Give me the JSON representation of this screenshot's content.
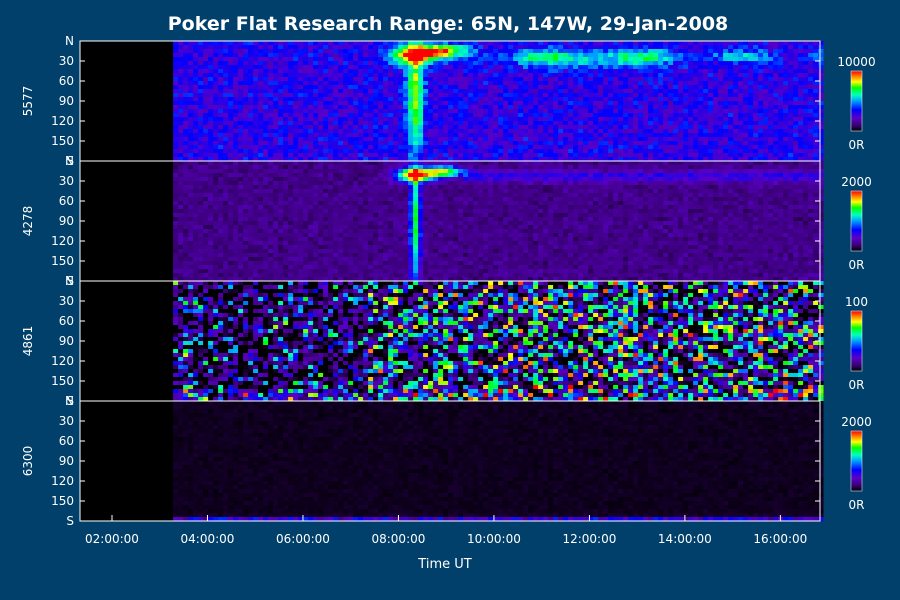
{
  "chart_data": {
    "type": "heatmap",
    "title": "Poker Flat Research Range: 65N, 147W, 29-Jan-2008",
    "xlabel": "Time UT",
    "x_ticks": [
      "02:00:00",
      "04:00:00",
      "06:00:00",
      "08:00:00",
      "10:00:00",
      "12:00:00",
      "14:00:00",
      "16:00:00"
    ],
    "x_tick_hours": [
      2,
      4,
      6,
      8,
      10,
      12,
      14,
      16
    ],
    "x_range_hours": [
      1.33,
      16.83
    ],
    "data_start_hour": 3.28,
    "y_ticks": [
      "N",
      "30",
      "60",
      "90",
      "120",
      "150",
      "S"
    ],
    "y_tick_values": [
      0,
      30,
      60,
      90,
      120,
      150,
      180
    ],
    "y_range": [
      0,
      180
    ],
    "colormap": [
      "#000000",
      "#3c007a",
      "#5a00c8",
      "#0000ff",
      "#00a0ff",
      "#00ffc0",
      "#00ff00",
      "#ffff00",
      "#ff8000",
      "#ff0000"
    ],
    "panels": [
      {
        "wavelength": "5577",
        "cbar_max": "10000",
        "cbar_min": "0R",
        "background_level": 0.3,
        "noise": 0.05
      },
      {
        "wavelength": "4278",
        "cbar_max": "2000",
        "cbar_min": "0R",
        "background_level": 0.14,
        "noise": 0.05
      },
      {
        "wavelength": "4861",
        "cbar_max": "100",
        "cbar_min": "0R",
        "background_level": 0.12,
        "noise": 0.35
      },
      {
        "wavelength": "6300",
        "cbar_max": "2000",
        "cbar_min": "0R",
        "background_level": 0.03,
        "noise": 0.02
      }
    ]
  }
}
